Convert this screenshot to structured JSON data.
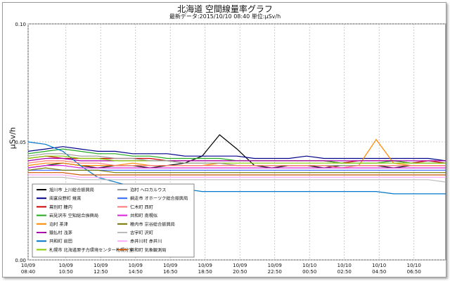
{
  "chart_data": {
    "type": "line",
    "title": "北海道 空間線量率グラフ",
    "subtitle": "最新データ:2015/10/10 08:40 単位:μSv/h",
    "ylabel": "μSv/h",
    "ylim": [
      0,
      0.1
    ],
    "yticks": [
      "0.00",
      "0.05",
      "0.10"
    ],
    "yticks_values": [
      0.0,
      0.05,
      0.1
    ],
    "x_tick_labels": [
      {
        "date": "10/09",
        "time": "08:40"
      },
      {
        "date": "10/09",
        "time": "10:50"
      },
      {
        "date": "10/09",
        "time": "12:50"
      },
      {
        "date": "10/09",
        "time": "14:50"
      },
      {
        "date": "10/09",
        "time": "16:50"
      },
      {
        "date": "10/09",
        "time": "18:50"
      },
      {
        "date": "10/09",
        "time": "20:50"
      },
      {
        "date": "10/09",
        "time": "22:50"
      },
      {
        "date": "10/10",
        "time": "00:50"
      },
      {
        "date": "10/10",
        "time": "02:50"
      },
      {
        "date": "10/10",
        "time": "04:50"
      },
      {
        "date": "10/10",
        "time": "06:50"
      }
    ],
    "x_tick_hours": [
      0,
      2.17,
      4.17,
      6.17,
      8.17,
      10.17,
      12.17,
      14.17,
      16.17,
      18.17,
      20.17,
      22.17
    ],
    "x_range_hours": [
      0,
      24
    ],
    "grid": true,
    "legend_position": "bottom-left",
    "series": [
      {
        "name": "旭川市 上川総合振興局",
        "color": "#000000",
        "values": [
          0.039,
          0.04,
          0.041,
          0.04,
          0.039,
          0.04,
          0.04,
          0.039,
          0.04,
          0.041,
          0.044,
          0.053,
          0.047,
          0.04,
          0.039,
          0.04,
          0.04,
          0.039,
          0.04,
          0.04,
          0.04,
          0.039,
          0.04,
          0.04,
          0.04
        ]
      },
      {
        "name": "南富良野町 幾寅",
        "color": "#00008b",
        "values": [
          0.046,
          0.047,
          0.048,
          0.047,
          0.046,
          0.046,
          0.045,
          0.045,
          0.045,
          0.044,
          0.044,
          0.044,
          0.044,
          0.043,
          0.043,
          0.043,
          0.044,
          0.043,
          0.043,
          0.043,
          0.043,
          0.043,
          0.043,
          0.043,
          0.042
        ]
      },
      {
        "name": "幕別町 糠内",
        "color": "#cc0000",
        "values": [
          0.043,
          0.044,
          0.043,
          0.043,
          0.043,
          0.043,
          0.043,
          0.043,
          0.042,
          0.042,
          0.042,
          0.042,
          0.042,
          0.042,
          0.042,
          0.042,
          0.042,
          0.042,
          0.041,
          0.042,
          0.042,
          0.042,
          0.041,
          0.042,
          0.041
        ]
      },
      {
        "name": "岩見沢市 空知総合振興局",
        "color": "#22aa22",
        "values": [
          0.045,
          0.046,
          0.047,
          0.046,
          0.045,
          0.045,
          0.044,
          0.044,
          0.043,
          0.043,
          0.043,
          0.043,
          0.042,
          0.042,
          0.042,
          0.042,
          0.042,
          0.042,
          0.041,
          0.041,
          0.041,
          0.042,
          0.041,
          0.041,
          0.041
        ]
      },
      {
        "name": "泊村 茶津",
        "color": "#ff8800",
        "values": [
          0.04,
          0.041,
          0.041,
          0.04,
          0.04,
          0.04,
          0.041,
          0.04,
          0.04,
          0.04,
          0.04,
          0.041,
          0.04,
          0.04,
          0.04,
          0.04,
          0.04,
          0.04,
          0.04,
          0.04,
          0.051,
          0.041,
          0.04,
          0.04,
          0.04
        ]
      },
      {
        "name": "猿払村 浅茅",
        "color": "#aa00aa",
        "values": [
          0.042,
          0.043,
          0.043,
          0.042,
          0.042,
          0.042,
          0.042,
          0.042,
          0.042,
          0.042,
          0.042,
          0.042,
          0.042,
          0.042,
          0.042,
          0.042,
          0.042,
          0.042,
          0.042,
          0.042,
          0.042,
          0.042,
          0.042,
          0.042,
          0.042
        ]
      },
      {
        "name": "共和町 前田",
        "color": "#0077cc",
        "values": [
          0.05,
          0.049,
          0.046,
          0.04,
          0.035,
          0.033,
          0.031,
          0.03,
          0.03,
          0.03,
          0.029,
          0.029,
          0.029,
          0.029,
          0.029,
          0.029,
          0.029,
          0.029,
          0.029,
          0.029,
          0.029,
          0.028,
          0.028,
          0.028,
          0.028
        ]
      },
      {
        "name": "札幌市 北海道原子力環境センター札幌分室",
        "color": "#88cc00",
        "values": [
          0.043,
          0.044,
          0.044,
          0.043,
          0.043,
          0.042,
          0.042,
          0.042,
          0.042,
          0.041,
          0.041,
          0.041,
          0.041,
          0.041,
          0.041,
          0.041,
          0.041,
          0.041,
          0.041,
          0.041,
          0.041,
          0.041,
          0.041,
          0.041,
          0.041
        ]
      },
      {
        "name": "泊村 ヘロカルウス",
        "color": "#999999",
        "values": [
          0.044,
          0.045,
          0.045,
          0.044,
          0.044,
          0.043,
          0.043,
          0.042,
          0.042,
          0.041,
          0.041,
          0.041,
          0.04,
          0.04,
          0.04,
          0.04,
          0.04,
          0.04,
          0.04,
          0.04,
          0.04,
          0.04,
          0.04,
          0.04,
          0.04
        ]
      },
      {
        "name": "網走市 オホーツク総合振興局",
        "color": "#3366ff",
        "values": [
          0.038,
          0.038,
          0.038,
          0.038,
          0.038,
          0.038,
          0.038,
          0.038,
          0.038,
          0.038,
          0.038,
          0.038,
          0.038,
          0.038,
          0.038,
          0.038,
          0.038,
          0.038,
          0.038,
          0.038,
          0.038,
          0.038,
          0.038,
          0.038,
          0.038
        ]
      },
      {
        "name": "仁木町 西町",
        "color": "#ff7777",
        "values": [
          0.041,
          0.042,
          0.042,
          0.041,
          0.041,
          0.04,
          0.04,
          0.04,
          0.04,
          0.04,
          0.04,
          0.04,
          0.04,
          0.04,
          0.04,
          0.04,
          0.04,
          0.04,
          0.039,
          0.04,
          0.04,
          0.04,
          0.04,
          0.04,
          0.04
        ]
      },
      {
        "name": "共和町 南幌似",
        "color": "#dd22dd",
        "values": [
          0.039,
          0.04,
          0.04,
          0.039,
          0.039,
          0.039,
          0.039,
          0.039,
          0.039,
          0.039,
          0.039,
          0.039,
          0.039,
          0.039,
          0.039,
          0.039,
          0.039,
          0.039,
          0.039,
          0.039,
          0.039,
          0.039,
          0.039,
          0.039,
          0.039
        ]
      },
      {
        "name": "稚内市 宗谷総合振興局",
        "color": "#777700",
        "values": [
          0.038,
          0.039,
          0.038,
          0.038,
          0.038,
          0.037,
          0.037,
          0.037,
          0.037,
          0.037,
          0.037,
          0.037,
          0.037,
          0.037,
          0.037,
          0.037,
          0.037,
          0.037,
          0.037,
          0.037,
          0.037,
          0.037,
          0.037,
          0.037,
          0.037
        ]
      },
      {
        "name": "古宇町 沢町",
        "color": "#bbbbbb",
        "values": [
          0.035,
          0.035,
          0.035,
          0.034,
          0.034,
          0.034,
          0.034,
          0.034,
          0.034,
          0.034,
          0.034,
          0.034,
          0.034,
          0.034,
          0.034,
          0.034,
          0.034,
          0.034,
          0.034,
          0.034,
          0.034,
          0.034,
          0.034,
          0.034,
          0.033
        ]
      },
      {
        "name": "赤井川村 赤井川",
        "color": "#ffaaff",
        "values": [
          0.036,
          0.036,
          0.036,
          0.035,
          0.035,
          0.035,
          0.035,
          0.035,
          0.035,
          0.035,
          0.035,
          0.035,
          0.035,
          0.035,
          0.035,
          0.035,
          0.035,
          0.035,
          0.035,
          0.035,
          0.035,
          0.035,
          0.035,
          0.035,
          0.035
        ]
      },
      {
        "name": "共和町 気象観測局",
        "color": "#cc5500",
        "values": [
          0.037,
          0.037,
          0.037,
          0.036,
          0.036,
          0.036,
          0.036,
          0.036,
          0.036,
          0.036,
          0.036,
          0.036,
          0.036,
          0.036,
          0.036,
          0.036,
          0.036,
          0.036,
          0.036,
          0.036,
          0.036,
          0.036,
          0.036,
          0.036,
          0.036
        ]
      }
    ]
  }
}
